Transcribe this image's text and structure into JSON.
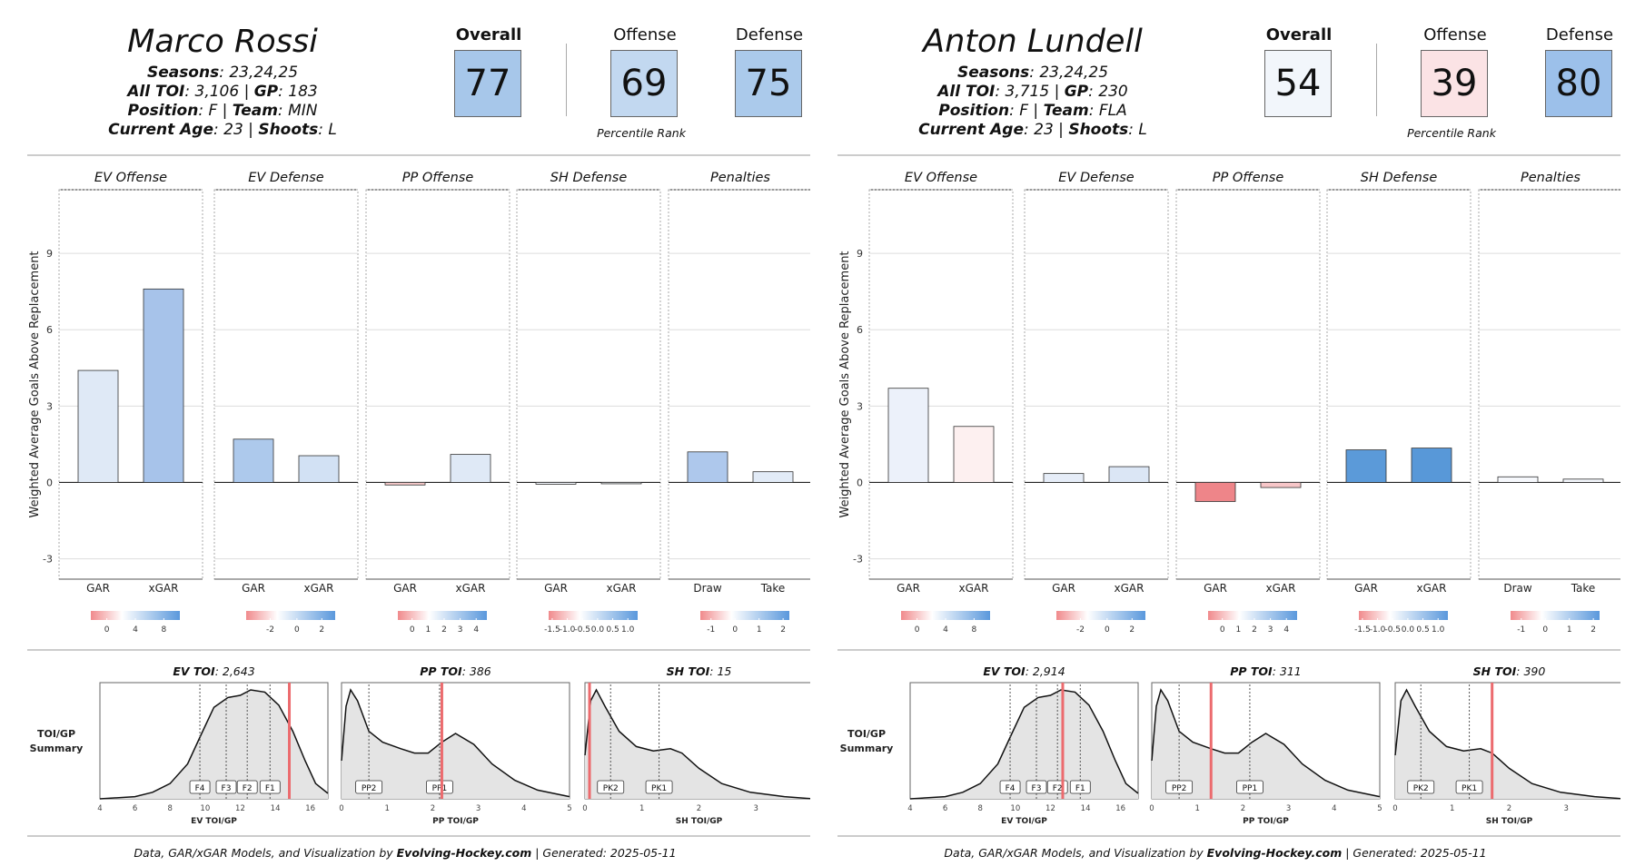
{
  "chart_data": [
    {
      "type": "bar",
      "player": {
        "name": "Marco Rossi",
        "seasons": "23,24,25",
        "all_toi": "3,106",
        "gp": "183",
        "position": "F",
        "team": "MIN",
        "current_age": "23",
        "shoots": "L"
      },
      "ranks": [
        {
          "label": "Overall",
          "value": 77,
          "color": "#a7c7ea"
        },
        {
          "label": "Offense",
          "value": 69,
          "color": "#c2d8f0"
        },
        {
          "label": "Defense",
          "value": 75,
          "color": "#abcaeb"
        }
      ],
      "rank_note": "Percentile Rank",
      "ylabel": "Weighted Average Goals Above Replacement",
      "ylim": [
        -3.8,
        11.5
      ],
      "yticks": [
        -3,
        0,
        3,
        6,
        9
      ],
      "panels": [
        {
          "title": "EV Offense",
          "categories": [
            "GAR",
            "xGAR"
          ],
          "values": [
            4.4,
            7.6
          ],
          "colors": [
            "#dfe9f6",
            "#a7c3ea"
          ],
          "legend": {
            "ticks": [
              "0",
              "4",
              "8"
            ],
            "tick_pos": [
              0.18,
              0.5,
              0.82
            ]
          }
        },
        {
          "title": "EV Defense",
          "categories": [
            "GAR",
            "xGAR"
          ],
          "values": [
            1.7,
            1.05
          ],
          "colors": [
            "#adc9ec",
            "#d2e1f4"
          ],
          "legend": {
            "ticks": [
              "-2",
              "0",
              "2"
            ],
            "tick_pos": [
              0.27,
              0.57,
              0.85
            ]
          }
        },
        {
          "title": "PP Offense",
          "categories": [
            "GAR",
            "xGAR"
          ],
          "values": [
            -0.1,
            1.1
          ],
          "colors": [
            "#f6c9c9",
            "#dfe9f6"
          ],
          "legend": {
            "ticks": [
              "0",
              "1",
              "2",
              "3",
              "4"
            ],
            "tick_pos": [
              0.16,
              0.34,
              0.52,
              0.7,
              0.88
            ]
          }
        },
        {
          "title": "SH Defense",
          "categories": [
            "GAR",
            "xGAR"
          ],
          "values": [
            -0.07,
            -0.04
          ],
          "colors": [
            "#eef2f8",
            "#f3f5f9"
          ],
          "legend": {
            "ticks": [
              "-1.5",
              "-1.0",
              "-0.5",
              "0.0",
              "0.5",
              "1.0"
            ],
            "tick_pos": [
              0.04,
              0.21,
              0.38,
              0.55,
              0.72,
              0.89
            ]
          }
        },
        {
          "title": "Penalties",
          "categories": [
            "Draw",
            "Take"
          ],
          "values": [
            1.2,
            0.42
          ],
          "colors": [
            "#aec8ec",
            "#e2ebf7"
          ],
          "legend": {
            "ticks": [
              "-1",
              "0",
              "1",
              "2"
            ],
            "tick_pos": [
              0.12,
              0.39,
              0.66,
              0.93
            ]
          }
        }
      ],
      "toi_label": "TOI/GP\nSummary",
      "toi": [
        {
          "title": "EV TOI",
          "value": "2,643",
          "xlabel": "EV TOI/GP",
          "xlim": [
            4,
            17
          ],
          "xticks": [
            4,
            6,
            8,
            10,
            12,
            14,
            16
          ],
          "marker": 14.8,
          "markers": [
            {
              "label": "F4",
              "x": 9.7
            },
            {
              "label": "F3",
              "x": 11.2
            },
            {
              "label": "F2",
              "x": 12.4
            },
            {
              "label": "F1",
              "x": 13.7
            }
          ],
          "curve": [
            [
              4,
              0.0
            ],
            [
              6,
              0.02
            ],
            [
              7,
              0.06
            ],
            [
              8,
              0.14
            ],
            [
              9,
              0.32
            ],
            [
              9.8,
              0.6
            ],
            [
              10.5,
              0.84
            ],
            [
              11.3,
              0.93
            ],
            [
              12,
              0.95
            ],
            [
              12.6,
              1.0
            ],
            [
              13.4,
              0.98
            ],
            [
              14.2,
              0.86
            ],
            [
              15,
              0.62
            ],
            [
              15.7,
              0.35
            ],
            [
              16.3,
              0.14
            ],
            [
              17,
              0.05
            ]
          ]
        },
        {
          "title": "PP TOI",
          "value": "386",
          "xlabel": "PP TOI/GP",
          "xlim": [
            0,
            5
          ],
          "xticks": [
            0,
            1,
            2,
            3,
            4,
            5
          ],
          "marker": 2.2,
          "markers": [
            {
              "label": "PP2",
              "x": 0.6
            },
            {
              "label": "PP1",
              "x": 2.15
            }
          ],
          "curve": [
            [
              0,
              0.35
            ],
            [
              0.1,
              0.85
            ],
            [
              0.2,
              1.0
            ],
            [
              0.35,
              0.9
            ],
            [
              0.6,
              0.62
            ],
            [
              0.9,
              0.52
            ],
            [
              1.3,
              0.46
            ],
            [
              1.6,
              0.42
            ],
            [
              1.9,
              0.42
            ],
            [
              2.2,
              0.52
            ],
            [
              2.5,
              0.6
            ],
            [
              2.9,
              0.5
            ],
            [
              3.3,
              0.32
            ],
            [
              3.8,
              0.17
            ],
            [
              4.3,
              0.08
            ],
            [
              5,
              0.02
            ]
          ]
        },
        {
          "title": "SH TOI",
          "value": "15",
          "xlabel": "SH TOI/GP",
          "xlim": [
            0,
            4
          ],
          "xticks": [
            0,
            1,
            2,
            3,
            4
          ],
          "marker": 0.08,
          "markers": [
            {
              "label": "PK2",
              "x": 0.45
            },
            {
              "label": "PK1",
              "x": 1.3
            }
          ],
          "curve": [
            [
              0,
              0.4
            ],
            [
              0.1,
              0.9
            ],
            [
              0.2,
              1.0
            ],
            [
              0.35,
              0.85
            ],
            [
              0.6,
              0.62
            ],
            [
              0.9,
              0.48
            ],
            [
              1.2,
              0.44
            ],
            [
              1.5,
              0.46
            ],
            [
              1.7,
              0.42
            ],
            [
              2.0,
              0.28
            ],
            [
              2.4,
              0.14
            ],
            [
              2.9,
              0.06
            ],
            [
              3.5,
              0.02
            ],
            [
              4,
              0.0
            ]
          ]
        }
      ]
    },
    {
      "type": "bar",
      "player": {
        "name": "Anton Lundell",
        "seasons": "23,24,25",
        "all_toi": "3,715",
        "gp": "230",
        "position": "F",
        "team": "FLA",
        "current_age": "23",
        "shoots": "L"
      },
      "ranks": [
        {
          "label": "Overall",
          "value": 54,
          "color": "#f2f6fb"
        },
        {
          "label": "Offense",
          "value": 39,
          "color": "#fbe3e5"
        },
        {
          "label": "Defense",
          "value": 80,
          "color": "#9cc0ea"
        }
      ],
      "rank_note": "Percentile Rank",
      "ylabel": "Weighted Average Goals Above Replacement",
      "ylim": [
        -3.8,
        11.5
      ],
      "yticks": [
        -3,
        0,
        3,
        6,
        9
      ],
      "panels": [
        {
          "title": "EV Offense",
          "categories": [
            "GAR",
            "xGAR"
          ],
          "values": [
            3.7,
            2.2
          ],
          "colors": [
            "#ecf1fa",
            "#fdf0f0"
          ],
          "legend": {
            "ticks": [
              "0",
              "4",
              "8"
            ],
            "tick_pos": [
              0.18,
              0.5,
              0.82
            ]
          }
        },
        {
          "title": "EV Defense",
          "categories": [
            "GAR",
            "xGAR"
          ],
          "values": [
            0.35,
            0.62
          ],
          "colors": [
            "#e6edf8",
            "#dbe6f5"
          ],
          "legend": {
            "ticks": [
              "-2",
              "0",
              "2"
            ],
            "tick_pos": [
              0.27,
              0.57,
              0.85
            ]
          }
        },
        {
          "title": "PP Offense",
          "categories": [
            "GAR",
            "xGAR"
          ],
          "values": [
            -0.75,
            -0.2
          ],
          "colors": [
            "#ee8589",
            "#f7c6c8"
          ],
          "legend": {
            "ticks": [
              "0",
              "1",
              "2",
              "3",
              "4"
            ],
            "tick_pos": [
              0.16,
              0.34,
              0.52,
              0.7,
              0.88
            ]
          }
        },
        {
          "title": "SH Defense",
          "categories": [
            "GAR",
            "xGAR"
          ],
          "values": [
            1.28,
            1.35
          ],
          "colors": [
            "#5b9ad9",
            "#5898d8"
          ],
          "legend": {
            "ticks": [
              "-1.5",
              "-1.0",
              "-0.5",
              "0.0",
              "0.5",
              "1.0"
            ],
            "tick_pos": [
              0.04,
              0.21,
              0.38,
              0.55,
              0.72,
              0.89
            ]
          }
        },
        {
          "title": "Penalties",
          "categories": [
            "Draw",
            "Take"
          ],
          "values": [
            0.22,
            0.13
          ],
          "colors": [
            "#f6f8fc",
            "#f2f5fa"
          ],
          "legend": {
            "ticks": [
              "-1",
              "0",
              "1",
              "2"
            ],
            "tick_pos": [
              0.12,
              0.39,
              0.66,
              0.93
            ]
          }
        }
      ],
      "toi_label": "TOI/GP\nSummary",
      "toi": [
        {
          "title": "EV TOI",
          "value": "2,914",
          "xlabel": "EV TOI/GP",
          "xlim": [
            4,
            17
          ],
          "xticks": [
            4,
            6,
            8,
            10,
            12,
            14,
            16
          ],
          "marker": 12.7,
          "markers": [
            {
              "label": "F4",
              "x": 9.7
            },
            {
              "label": "F3",
              "x": 11.2
            },
            {
              "label": "F2",
              "x": 12.4
            },
            {
              "label": "F1",
              "x": 13.7
            }
          ],
          "curve": [
            [
              4,
              0.0
            ],
            [
              6,
              0.02
            ],
            [
              7,
              0.06
            ],
            [
              8,
              0.14
            ],
            [
              9,
              0.32
            ],
            [
              9.8,
              0.6
            ],
            [
              10.5,
              0.84
            ],
            [
              11.3,
              0.93
            ],
            [
              12,
              0.95
            ],
            [
              12.6,
              1.0
            ],
            [
              13.4,
              0.98
            ],
            [
              14.2,
              0.86
            ],
            [
              15,
              0.62
            ],
            [
              15.7,
              0.35
            ],
            [
              16.3,
              0.14
            ],
            [
              17,
              0.05
            ]
          ]
        },
        {
          "title": "PP TOI",
          "value": "311",
          "xlabel": "PP TOI/GP",
          "xlim": [
            0,
            5
          ],
          "xticks": [
            0,
            1,
            2,
            3,
            4,
            5
          ],
          "marker": 1.3,
          "markers": [
            {
              "label": "PP2",
              "x": 0.6
            },
            {
              "label": "PP1",
              "x": 2.15
            }
          ],
          "curve": [
            [
              0,
              0.35
            ],
            [
              0.1,
              0.85
            ],
            [
              0.2,
              1.0
            ],
            [
              0.35,
              0.9
            ],
            [
              0.6,
              0.62
            ],
            [
              0.9,
              0.52
            ],
            [
              1.3,
              0.46
            ],
            [
              1.6,
              0.42
            ],
            [
              1.9,
              0.42
            ],
            [
              2.2,
              0.52
            ],
            [
              2.5,
              0.6
            ],
            [
              2.9,
              0.5
            ],
            [
              3.3,
              0.32
            ],
            [
              3.8,
              0.17
            ],
            [
              4.3,
              0.08
            ],
            [
              5,
              0.02
            ]
          ]
        },
        {
          "title": "SH TOI",
          "value": "390",
          "xlabel": "SH TOI/GP",
          "xlim": [
            0,
            4
          ],
          "xticks": [
            0,
            1,
            2,
            3,
            4
          ],
          "marker": 1.7,
          "markers": [
            {
              "label": "PK2",
              "x": 0.45
            },
            {
              "label": "PK1",
              "x": 1.3
            }
          ],
          "curve": [
            [
              0,
              0.4
            ],
            [
              0.1,
              0.9
            ],
            [
              0.2,
              1.0
            ],
            [
              0.35,
              0.85
            ],
            [
              0.6,
              0.62
            ],
            [
              0.9,
              0.48
            ],
            [
              1.2,
              0.44
            ],
            [
              1.5,
              0.46
            ],
            [
              1.7,
              0.42
            ],
            [
              2.0,
              0.28
            ],
            [
              2.4,
              0.14
            ],
            [
              2.9,
              0.06
            ],
            [
              3.5,
              0.02
            ],
            [
              4,
              0.0
            ]
          ]
        }
      ]
    }
  ],
  "footer": {
    "prefix": "Data, GAR/xGAR Models, and Visualization by ",
    "site": "Evolving-Hockey.com",
    "suffix": " | Generated: 2025-05-11"
  }
}
